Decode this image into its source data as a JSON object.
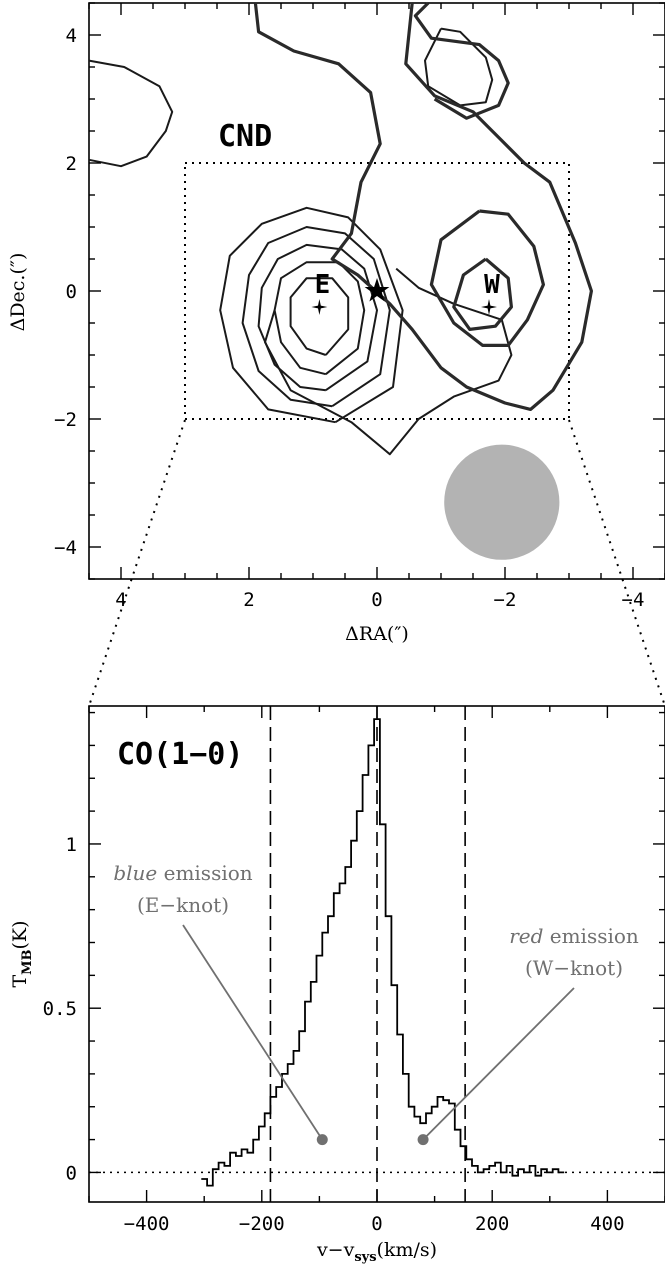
{
  "chart_data": [
    {
      "type": "contour",
      "title": "CND",
      "xlabel": "ΔRA(″)",
      "ylabel": "ΔDec.(″)",
      "xlim": [
        4.5,
        -4.5
      ],
      "ylim": [
        -4.5,
        4.5
      ],
      "x_ticks": [
        "4",
        "2",
        "0",
        "−2",
        "−4"
      ],
      "y_ticks": [
        "4",
        "2",
        "0",
        "−2",
        "−4"
      ],
      "box": {
        "x": [
          -3,
          3
        ],
        "y": [
          -2,
          2
        ]
      },
      "knots": [
        {
          "label": "E",
          "x": 0.9,
          "y": -0.25
        },
        {
          "label": "W",
          "x": -1.75,
          "y": -0.25
        }
      ],
      "center_marker": {
        "x": 0,
        "y": 0
      },
      "beam": {
        "x": -1.95,
        "y": -3.3,
        "diameter": 1.8,
        "color": "#b3b3b3"
      },
      "contours_E": [
        [
          [
            0.8,
            -1.0
          ],
          [
            0.45,
            -0.6
          ],
          [
            0.45,
            -0.1
          ],
          [
            0.7,
            0.2
          ],
          [
            1.1,
            0.2
          ],
          [
            1.35,
            -0.1
          ],
          [
            1.35,
            -0.55
          ],
          [
            1.1,
            -0.9
          ],
          [
            0.8,
            -1.0
          ]
        ],
        [
          [
            0.8,
            -1.3
          ],
          [
            0.3,
            -0.9
          ],
          [
            0.2,
            -0.3
          ],
          [
            0.3,
            0.15
          ],
          [
            0.6,
            0.45
          ],
          [
            1.1,
            0.45
          ],
          [
            1.5,
            0.2
          ],
          [
            1.6,
            -0.3
          ],
          [
            1.5,
            -0.8
          ],
          [
            1.2,
            -1.2
          ],
          [
            0.8,
            -1.3
          ]
        ],
        [
          [
            0.8,
            -1.55
          ],
          [
            0.15,
            -1.1
          ],
          [
            0.0,
            -0.3
          ],
          [
            0.2,
            0.35
          ],
          [
            0.55,
            0.65
          ],
          [
            1.1,
            0.72
          ],
          [
            1.55,
            0.5
          ],
          [
            1.8,
            0.05
          ],
          [
            1.85,
            -0.55
          ],
          [
            1.6,
            -1.15
          ],
          [
            1.2,
            -1.5
          ],
          [
            0.8,
            -1.55
          ]
        ],
        [
          [
            0.7,
            -1.8
          ],
          [
            -0.05,
            -1.3
          ],
          [
            -0.2,
            -0.3
          ],
          [
            0.05,
            0.5
          ],
          [
            0.5,
            0.9
          ],
          [
            1.1,
            1.0
          ],
          [
            1.7,
            0.75
          ],
          [
            2.0,
            0.25
          ],
          [
            2.1,
            -0.5
          ],
          [
            1.85,
            -1.25
          ],
          [
            1.35,
            -1.7
          ],
          [
            0.7,
            -1.8
          ]
        ],
        [
          [
            0.65,
            -2.05
          ],
          [
            -0.25,
            -1.5
          ],
          [
            -0.4,
            -0.3
          ],
          [
            -0.05,
            0.65
          ],
          [
            0.45,
            1.15
          ],
          [
            1.1,
            1.3
          ],
          [
            1.8,
            1.05
          ],
          [
            2.3,
            0.55
          ],
          [
            2.45,
            -0.3
          ],
          [
            2.25,
            -1.2
          ],
          [
            1.7,
            -1.85
          ],
          [
            0.65,
            -2.05
          ]
        ]
      ],
      "contours_W": [
        [
          [
            -1.7,
            0.5
          ],
          [
            -1.35,
            0.25
          ],
          [
            -1.2,
            -0.25
          ],
          [
            -1.45,
            -0.6
          ],
          [
            -1.85,
            -0.55
          ],
          [
            -2.1,
            -0.25
          ],
          [
            -2.05,
            0.2
          ],
          [
            -1.7,
            0.5
          ]
        ],
        [
          [
            -1.6,
            1.25
          ],
          [
            -1.0,
            0.8
          ],
          [
            -0.85,
            0.1
          ],
          [
            -1.2,
            -0.5
          ],
          [
            -1.65,
            -0.85
          ],
          [
            -2.05,
            -0.85
          ],
          [
            -2.35,
            -0.45
          ],
          [
            -2.6,
            0.1
          ],
          [
            -2.45,
            0.7
          ],
          [
            -2.05,
            1.2
          ],
          [
            -1.6,
            1.25
          ]
        ]
      ],
      "contours_thin_outer": [
        [
          [
            1.6,
            -0.3
          ],
          [
            1.75,
            -0.8
          ],
          [
            1.35,
            -1.55
          ],
          [
            0.4,
            -2.05
          ],
          [
            -0.2,
            -2.55
          ],
          [
            -0.65,
            -2.0
          ],
          [
            -1.2,
            -1.65
          ],
          [
            -1.9,
            -1.4
          ],
          [
            -2.1,
            -1.0
          ],
          [
            -1.95,
            -0.45
          ],
          [
            -1.2,
            -0.2
          ],
          [
            -0.65,
            0.05
          ],
          [
            -0.3,
            0.35
          ]
        ],
        [
          [
            4.5,
            3.6
          ],
          [
            3.95,
            3.5
          ],
          [
            3.4,
            3.2
          ],
          [
            3.2,
            2.8
          ],
          [
            3.3,
            2.5
          ],
          [
            3.6,
            2.1
          ],
          [
            4.0,
            1.95
          ],
          [
            4.5,
            2.05
          ]
        ],
        [
          [
            -1.0,
            4.1
          ],
          [
            -1.3,
            4.05
          ],
          [
            -1.7,
            3.65
          ],
          [
            -1.8,
            3.3
          ],
          [
            -1.7,
            2.95
          ],
          [
            -1.3,
            2.9
          ],
          [
            -0.8,
            3.2
          ],
          [
            -0.75,
            3.6
          ],
          [
            -1.0,
            4.1
          ]
        ]
      ],
      "contours_thick_outer": [
        [
          [
            1.9,
            4.5
          ],
          [
            1.85,
            4.05
          ],
          [
            1.3,
            3.75
          ],
          [
            0.6,
            3.55
          ],
          [
            0.1,
            3.1
          ],
          [
            -0.05,
            2.3
          ],
          [
            0.25,
            1.7
          ],
          [
            0.4,
            0.9
          ],
          [
            0.7,
            0.5
          ],
          [
            0.3,
            0.25
          ],
          [
            -0.2,
            -0.2
          ],
          [
            -0.55,
            -0.6
          ],
          [
            -1.0,
            -1.2
          ],
          [
            -1.4,
            -1.5
          ],
          [
            -2.0,
            -1.75
          ],
          [
            -2.4,
            -1.85
          ],
          [
            -2.75,
            -1.55
          ],
          [
            -3.2,
            -0.8
          ],
          [
            -3.35,
            0.0
          ],
          [
            -3.1,
            0.75
          ],
          [
            -2.7,
            1.7
          ],
          [
            -2.3,
            2.0
          ],
          [
            -1.9,
            2.4
          ],
          [
            -1.5,
            2.8
          ],
          [
            -0.9,
            3.05
          ],
          [
            -0.45,
            3.55
          ],
          [
            -0.55,
            4.5
          ]
        ],
        [
          [
            -0.8,
            4.5
          ],
          [
            -0.6,
            4.3
          ],
          [
            -0.85,
            3.95
          ],
          [
            -1.6,
            3.85
          ],
          [
            -1.9,
            3.6
          ],
          [
            -2.05,
            3.25
          ],
          [
            -1.9,
            2.9
          ],
          [
            -1.4,
            2.7
          ],
          [
            -0.9,
            3.0
          ]
        ]
      ]
    },
    {
      "type": "step-line",
      "title": "CO(1−0)",
      "xlabel": "v−v",
      "xlabel_sub": "sys",
      "xlabel_suffix": "(km/s)",
      "ylabel": "T",
      "ylabel_sub": "MB",
      "ylabel_suffix": "(K)",
      "xlim": [
        -500,
        500
      ],
      "ylim": [
        -0.09,
        1.42
      ],
      "x_ticks": [
        "−400",
        "−200",
        "0",
        "200",
        "400"
      ],
      "y_ticks": [
        "0",
        "0.5",
        "1"
      ],
      "vlines_dashed": [
        -185,
        0,
        153
      ],
      "hline_dotted": 0,
      "x": [
        -300,
        -290,
        -280,
        -270,
        -260,
        -250,
        -240,
        -230,
        -220,
        -210,
        -200,
        -190,
        -180,
        -170,
        -160,
        -150,
        -140,
        -130,
        -120,
        -110,
        -100,
        -90,
        -80,
        -70,
        -60,
        -50,
        -40,
        -30,
        -20,
        -10,
        0,
        10,
        20,
        30,
        40,
        50,
        60,
        70,
        80,
        90,
        100,
        110,
        120,
        130,
        140,
        150,
        160,
        170,
        180,
        190,
        200,
        210,
        220,
        230,
        240,
        250,
        260,
        270,
        280,
        290,
        300,
        310,
        320
      ],
      "y": [
        -0.02,
        -0.04,
        0.01,
        0.03,
        0.02,
        0.06,
        0.05,
        0.07,
        0.06,
        0.1,
        0.14,
        0.18,
        0.23,
        0.26,
        0.3,
        0.33,
        0.37,
        0.43,
        0.52,
        0.58,
        0.66,
        0.73,
        0.78,
        0.85,
        0.88,
        0.93,
        1.01,
        1.1,
        1.21,
        1.3,
        1.38,
        1.06,
        0.78,
        0.57,
        0.42,
        0.3,
        0.2,
        0.17,
        0.15,
        0.18,
        0.2,
        0.23,
        0.22,
        0.21,
        0.13,
        0.08,
        0.04,
        0.02,
        0.0,
        0.01,
        0.02,
        0.03,
        0.0,
        0.02,
        -0.01,
        0.01,
        0.0,
        0.02,
        -0.01,
        0.01,
        0.0,
        0.01,
        0.0
      ],
      "annotations": [
        {
          "text_italic": "blue",
          "text_rest": " emission",
          "line2": "(E−knot)",
          "point": [
            -95,
            0.1
          ]
        },
        {
          "text_italic": "red",
          "text_rest": " emission",
          "line2": "(W−knot)",
          "point": [
            80,
            0.1
          ]
        }
      ],
      "annotation_color": "#707070"
    }
  ]
}
